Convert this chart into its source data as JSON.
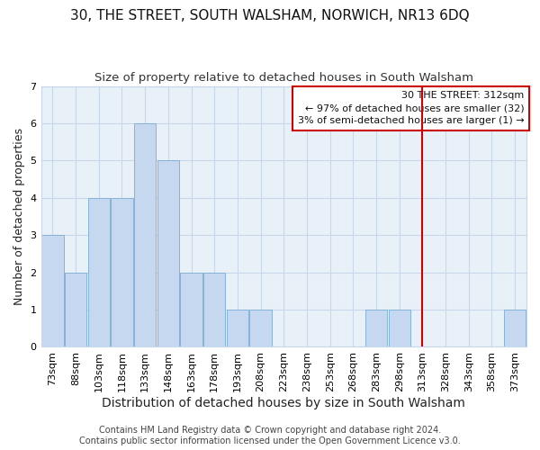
{
  "title": "30, THE STREET, SOUTH WALSHAM, NORWICH, NR13 6DQ",
  "subtitle": "Size of property relative to detached houses in South Walsham",
  "xlabel": "Distribution of detached houses by size in South Walsham",
  "ylabel": "Number of detached properties",
  "bar_labels": [
    "73sqm",
    "88sqm",
    "103sqm",
    "118sqm",
    "133sqm",
    "148sqm",
    "163sqm",
    "178sqm",
    "193sqm",
    "208sqm",
    "223sqm",
    "238sqm",
    "253sqm",
    "268sqm",
    "283sqm",
    "298sqm",
    "313sqm",
    "328sqm",
    "343sqm",
    "358sqm",
    "373sqm"
  ],
  "bar_values": [
    3,
    2,
    4,
    4,
    6,
    5,
    2,
    2,
    1,
    1,
    0,
    0,
    0,
    0,
    1,
    1,
    0,
    0,
    0,
    0,
    1
  ],
  "bar_color": "#c5d8f0",
  "bar_edge_color": "#7bacd4",
  "grid_color": "#c8d8ea",
  "bg_color": "#e8f0f8",
  "vline_color": "#cc0000",
  "annotation_text": "30 THE STREET: 312sqm\n← 97% of detached houses are smaller (32)\n3% of semi-detached houses are larger (1) →",
  "annotation_box_color": "#cc0000",
  "ylim": [
    0,
    7
  ],
  "yticks": [
    0,
    1,
    2,
    3,
    4,
    5,
    6,
    7
  ],
  "footer_text": "Contains HM Land Registry data © Crown copyright and database right 2024.\nContains public sector information licensed under the Open Government Licence v3.0.",
  "title_fontsize": 11,
  "subtitle_fontsize": 9.5,
  "xlabel_fontsize": 10,
  "ylabel_fontsize": 9,
  "tick_fontsize": 8,
  "annot_fontsize": 8,
  "footer_fontsize": 7
}
